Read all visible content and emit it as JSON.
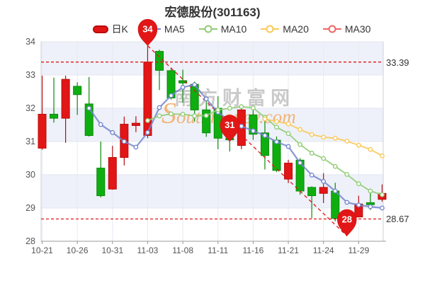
{
  "page": {
    "title": "宏德股份(301163)"
  },
  "legend": {
    "items": [
      {
        "label": "日K",
        "type": "candle",
        "color": "#e21616"
      },
      {
        "label": "MA5",
        "type": "line",
        "color": "#7486cf"
      },
      {
        "label": "MA10",
        "type": "line",
        "color": "#91cc75"
      },
      {
        "label": "MA20",
        "type": "line",
        "color": "#fac858"
      },
      {
        "label": "MA30",
        "type": "line",
        "color": "#ee6666"
      }
    ]
  },
  "watermark": {
    "cn": "南方财富网",
    "en": "Southmoney.com"
  },
  "colors": {
    "up": "#e21616",
    "up_border": "#b90c0c",
    "down": "#0fae10",
    "down_border": "#078a08",
    "ma5": "#7486cf",
    "ma10": "#91cc75",
    "ma20": "#fac858",
    "ma30": "#ee6666",
    "markline": "#e21616",
    "pin": "#e21616",
    "pin_border": "#c30f0f",
    "band": "#eef1f9",
    "grid": "#e3e6f0",
    "vgrid": "#e8eaf2",
    "border": "#ccd0dc",
    "axis": "#999999",
    "label": "#555555",
    "watermark_cn": "rgba(150,150,150,0.5)",
    "watermark_en": "rgba(240,166,92,0.8)"
  },
  "chart_data": {
    "type": "candlestick",
    "title": "宏德股份(301163)",
    "ylim": [
      28,
      34
    ],
    "y_ticks": [
      34,
      33,
      32,
      31,
      30,
      29,
      28
    ],
    "x_tick_labels": [
      "10-21",
      "10-26",
      "10-31",
      "11-03",
      "11-08",
      "11-11",
      "11-16",
      "11-21",
      "11-24",
      "11-29"
    ],
    "x_tick_indices": [
      0,
      3,
      6,
      9,
      12,
      15,
      18,
      21,
      24,
      27
    ],
    "categories": [
      "10-21",
      "10-24",
      "10-25",
      "10-26",
      "10-27",
      "10-28",
      "10-31",
      "11-01",
      "11-02",
      "11-03",
      "11-04",
      "11-07",
      "11-08",
      "11-09",
      "11-10",
      "11-11",
      "11-14",
      "11-15",
      "11-16",
      "11-17",
      "11-18",
      "11-21",
      "11-22",
      "11-23",
      "11-24",
      "11-25",
      "11-28",
      "11-29",
      "11-30",
      "12-01"
    ],
    "candles": [
      {
        "date": "10-21",
        "open": 30.8,
        "close": 31.82,
        "low": 30.75,
        "high": 32.98
      },
      {
        "date": "10-24",
        "open": 31.82,
        "close": 31.7,
        "low": 31.57,
        "high": 32.92
      },
      {
        "date": "10-25",
        "open": 31.7,
        "close": 32.87,
        "low": 30.96,
        "high": 32.98
      },
      {
        "date": "10-26",
        "open": 32.66,
        "close": 32.41,
        "low": 31.8,
        "high": 32.78
      },
      {
        "date": "10-27",
        "open": 32.13,
        "close": 31.18,
        "low": 31.15,
        "high": 32.94
      },
      {
        "date": "10-28",
        "open": 30.2,
        "close": 29.37,
        "low": 29.32,
        "high": 31.0
      },
      {
        "date": "10-31",
        "open": 29.57,
        "close": 30.52,
        "low": 29.55,
        "high": 30.87
      },
      {
        "date": "11-01",
        "open": 30.52,
        "close": 31.52,
        "low": 30.28,
        "high": 31.75
      },
      {
        "date": "11-02",
        "open": 31.48,
        "close": 31.55,
        "low": 31.28,
        "high": 31.76
      },
      {
        "date": "11-03",
        "open": 31.18,
        "close": 33.39,
        "low": 31.1,
        "high": 33.88
      },
      {
        "date": "11-04",
        "open": 33.71,
        "close": 33.14,
        "low": 32.55,
        "high": 33.76
      },
      {
        "date": "11-07",
        "open": 33.13,
        "close": 32.31,
        "low": 32.26,
        "high": 33.21
      },
      {
        "date": "11-08",
        "open": 32.83,
        "close": 32.76,
        "low": 32.17,
        "high": 33.16
      },
      {
        "date": "11-09",
        "open": 32.72,
        "close": 31.95,
        "low": 31.6,
        "high": 32.8
      },
      {
        "date": "11-10",
        "open": 31.95,
        "close": 31.26,
        "low": 31.14,
        "high": 32.33
      },
      {
        "date": "11-11",
        "open": 32.0,
        "close": 31.1,
        "low": 30.77,
        "high": 32.36
      },
      {
        "date": "11-14",
        "open": 31.1,
        "close": 31.05,
        "low": 30.7,
        "high": 31.3
      },
      {
        "date": "11-15",
        "open": 30.88,
        "close": 31.95,
        "low": 30.77,
        "high": 32.03
      },
      {
        "date": "11-16",
        "open": 31.8,
        "close": 31.22,
        "low": 31.05,
        "high": 32.0
      },
      {
        "date": "11-17",
        "open": 31.26,
        "close": 30.58,
        "low": 30.16,
        "high": 31.66
      },
      {
        "date": "11-18",
        "open": 31.04,
        "close": 30.13,
        "low": 30.08,
        "high": 31.15
      },
      {
        "date": "11-21",
        "open": 29.87,
        "close": 30.35,
        "low": 29.75,
        "high": 30.45
      },
      {
        "date": "11-22",
        "open": 30.44,
        "close": 29.51,
        "low": 29.4,
        "high": 30.5
      },
      {
        "date": "11-23",
        "open": 29.62,
        "close": 29.37,
        "low": 28.69,
        "high": 29.65
      },
      {
        "date": "11-24",
        "open": 29.44,
        "close": 29.62,
        "low": 29.15,
        "high": 30.05
      },
      {
        "date": "11-25",
        "open": 29.51,
        "close": 28.69,
        "low": 28.6,
        "high": 29.76
      },
      {
        "date": "11-28",
        "open": 28.75,
        "close": 28.67,
        "low": 28.16,
        "high": 28.9
      },
      {
        "date": "11-29",
        "open": 28.73,
        "close": 29.12,
        "low": 28.72,
        "high": 29.37
      },
      {
        "date": "11-30",
        "open": 29.16,
        "close": 29.1,
        "low": 28.94,
        "high": 29.58
      },
      {
        "date": "12-01",
        "open": 29.26,
        "close": 29.44,
        "low": 29.19,
        "high": 29.71
      }
    ],
    "series": [
      {
        "name": "MA5",
        "values": [
          null,
          null,
          null,
          null,
          32.0,
          31.51,
          31.27,
          31.0,
          30.83,
          31.27,
          32.02,
          32.38,
          32.63,
          32.71,
          32.28,
          31.88,
          31.62,
          31.46,
          31.32,
          31.18,
          30.99,
          30.85,
          30.36,
          29.99,
          29.8,
          29.51,
          29.17,
          29.09,
          29.04,
          29.0
        ]
      },
      {
        "name": "MA10",
        "values": [
          null,
          null,
          null,
          null,
          null,
          null,
          null,
          null,
          null,
          31.63,
          31.77,
          31.83,
          31.82,
          31.77,
          31.78,
          31.95,
          32.0,
          32.05,
          32.01,
          31.73,
          31.43,
          31.24,
          30.91,
          30.65,
          30.49,
          30.25,
          30.01,
          29.73,
          29.51,
          29.4
        ]
      },
      {
        "name": "MA20",
        "values": [
          null,
          null,
          null,
          null,
          null,
          null,
          null,
          null,
          null,
          null,
          null,
          null,
          null,
          null,
          null,
          null,
          null,
          null,
          null,
          31.68,
          31.6,
          31.53,
          31.36,
          31.21,
          31.13,
          31.1,
          31.01,
          30.89,
          30.76,
          30.57
        ]
      },
      {
        "name": "MA30",
        "values": [
          null,
          null,
          null,
          null,
          null,
          null,
          null,
          null,
          null,
          null,
          null,
          null,
          null,
          null,
          null,
          null,
          null,
          null,
          null,
          null,
          null,
          null,
          null,
          null,
          null,
          null,
          null,
          null,
          null,
          null
        ]
      }
    ],
    "markpoints": [
      {
        "label": "34",
        "index": 9,
        "value": 33.88
      },
      {
        "label": "31",
        "index": 16,
        "value": 31.0
      },
      {
        "label": "28",
        "index": 26,
        "value": 28.16
      }
    ],
    "marklines": {
      "high": 33.39,
      "high_label": "33.39",
      "low": 28.67,
      "low_label": "28.67",
      "trend": {
        "from_index": 9,
        "from_value": 33.88,
        "to_index": 26,
        "to_value": 28.16
      }
    },
    "legend_position": "top",
    "grid": "horizontal-bands"
  }
}
